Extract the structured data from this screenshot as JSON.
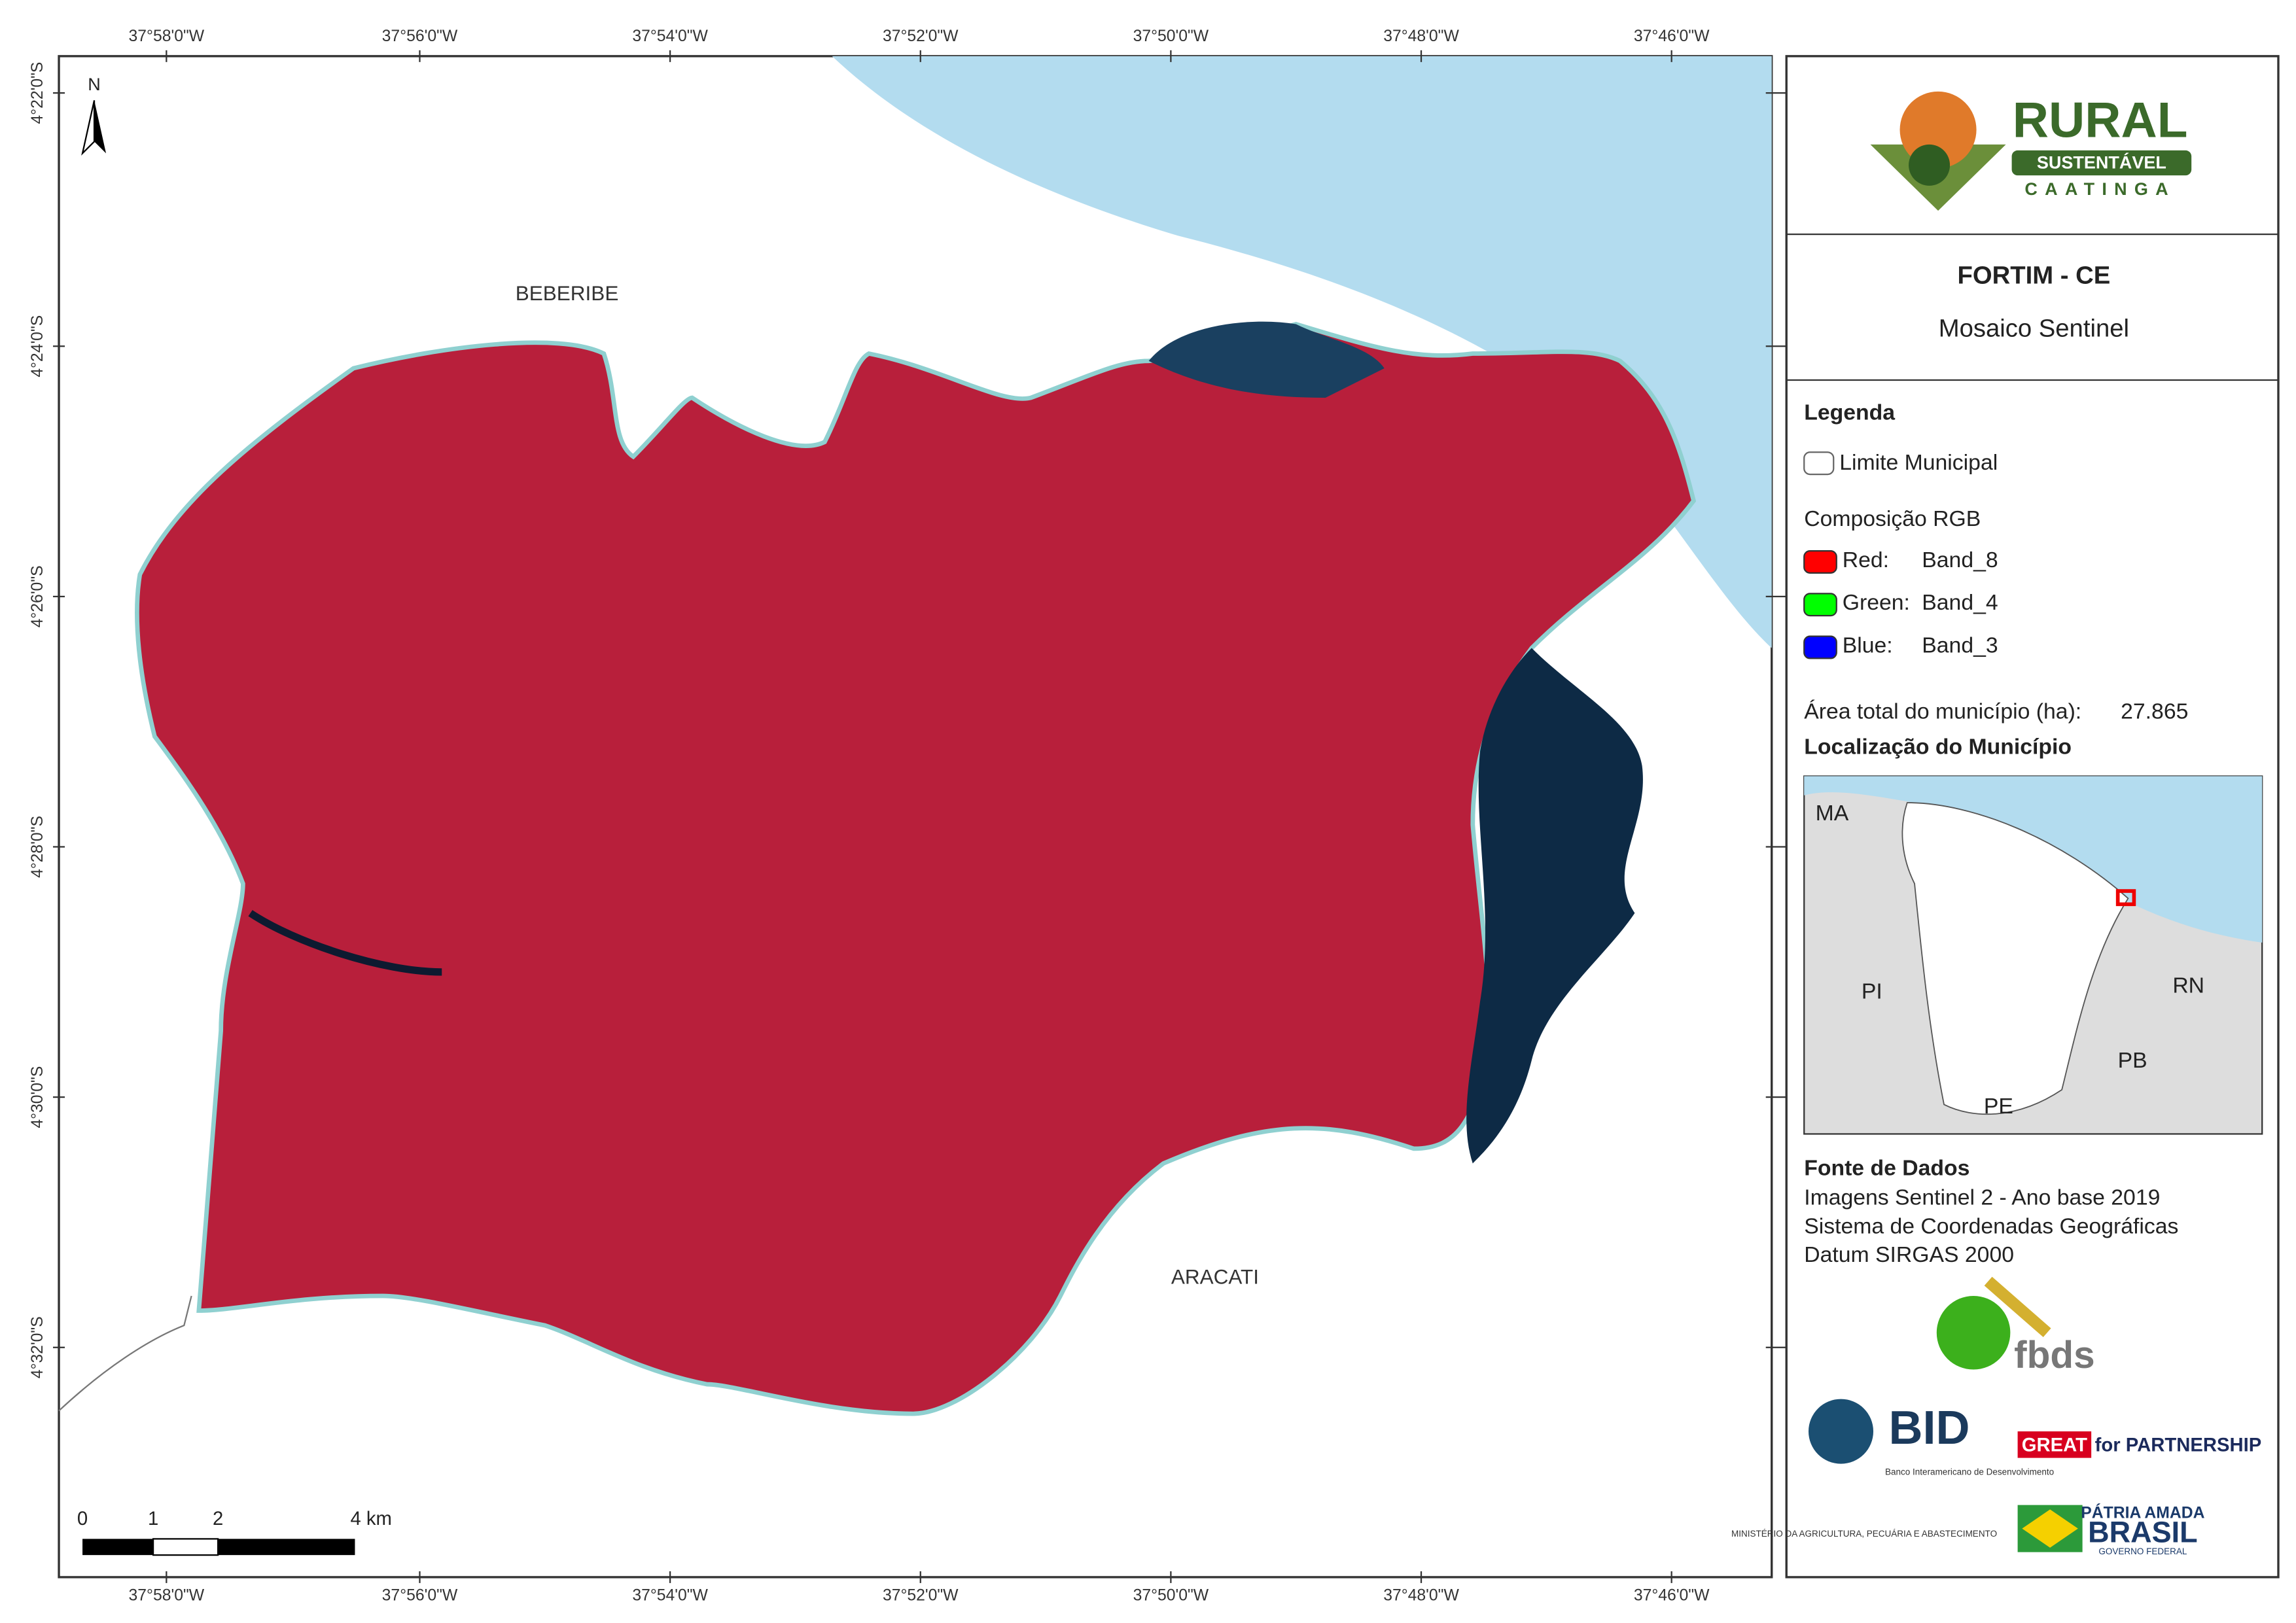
{
  "map": {
    "x_ticks": [
      "37°58'0\"W",
      "37°56'0\"W",
      "37°54'0\"W",
      "37°52'0\"W",
      "37°50'0\"W",
      "37°48'0\"W",
      "37°46'0\"W"
    ],
    "y_ticks": [
      "4°22'0\"S",
      "4°24'0\"S",
      "4°26'0\"S",
      "4°28'0\"S",
      "4°30'0\"S",
      "4°32'0\"S"
    ],
    "north": "N",
    "places": [
      "BEBERIBE",
      "ARACATI"
    ],
    "scale_bar": [
      "0",
      "1",
      "2",
      "4 km"
    ]
  },
  "panel": {
    "logo": {
      "title": "RURAL",
      "subtitle": "SUSTENTÁVEL",
      "tagline": "CAATINGA"
    },
    "title": "FORTIM - CE",
    "subtitle": "Mosaico Sentinel",
    "legend": {
      "heading": "Legenda",
      "boundary": "Limite Municipal",
      "rgb_heading": "Composição RGB",
      "bands": [
        {
          "channel": "Red:",
          "band": "Band_8",
          "color": "#ff0000"
        },
        {
          "channel": "Green:",
          "band": "Band_4",
          "color": "#00ff00"
        },
        {
          "channel": "Blue:",
          "band": "Band_3",
          "color": "#0000ff"
        }
      ]
    },
    "area": {
      "label": "Área total do município (ha):",
      "value": "27.865"
    },
    "location": {
      "heading": "Localização do Município",
      "states": [
        "MA",
        "PI",
        "RN",
        "PB",
        "PE"
      ]
    },
    "sources": {
      "heading": "Fonte de Dados",
      "lines": [
        "Imagens Sentinel 2 - Ano base 2019",
        "Sistema de Coordenadas Geográficas",
        "Datum SIRGAS 2000"
      ]
    },
    "sponsors": {
      "fbds": "fbds",
      "bid": "BID",
      "bid_name": "Banco Interamericano de Desenvolvimento",
      "great": "GREAT",
      "partnership": "for PARTNERSHIP",
      "ministry": "MINISTÉRIO DA AGRICULTURA, PECUÁRIA E ABASTECIMENTO",
      "brasil": [
        "PÁTRIA AMADA",
        "BRASIL",
        "GOVERNO FEDERAL"
      ]
    }
  }
}
